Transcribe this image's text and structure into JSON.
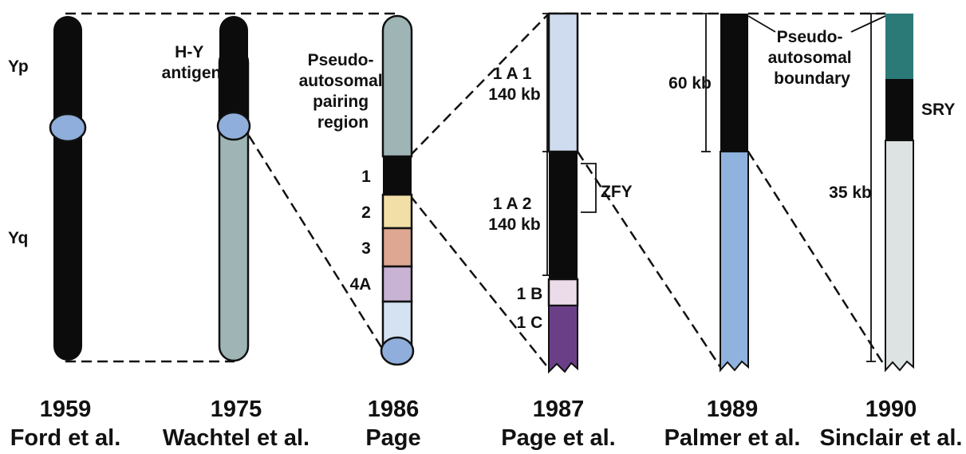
{
  "colors": {
    "black": "#0c0c0c",
    "grey_green": "#9fb5b5",
    "centromere_blue": "#90aedb",
    "band_yellow": "#f2dfa8",
    "band_salmon": "#dea792",
    "band_lilac": "#c8b3d4",
    "band_pale_blue": "#d4e2f2",
    "light_blue": "#cfdcef",
    "pale_pink": "#ecdcea",
    "purple": "#6b3f88",
    "medium_blue": "#90b2de",
    "teal": "#2b7a78",
    "pale_grey": "#dde3e3"
  },
  "panel_1959": {
    "arm_p": "Yp",
    "arm_q": "Yq",
    "year": "1959",
    "author": "Ford et al."
  },
  "panel_1975": {
    "label_line1": "H-Y",
    "label_line2": "antigen",
    "year": "1975",
    "author": "Wachtel et al."
  },
  "panel_1986": {
    "region_lines": [
      "Pseudo-",
      "autosomal",
      "pairing",
      "region"
    ],
    "bands": [
      "1",
      "2",
      "3",
      "4A"
    ],
    "year": "1986",
    "author": "Page"
  },
  "panel_1987": {
    "seg1_line1": "1 A 1",
    "seg1_line2": "140 kb",
    "seg2_line1": "1 A 2",
    "seg2_line2": "140 kb",
    "seg_1b": "1 B",
    "seg_1c": "1 C",
    "zfy": "ZFY",
    "year": "1987",
    "author": "Page et al."
  },
  "panel_1989": {
    "size": "60 kb",
    "boundary_lines": [
      "Pseudo-",
      "autosomal",
      "boundary"
    ],
    "year": "1989",
    "author": "Palmer et al."
  },
  "panel_1990": {
    "sry": "SRY",
    "size": "35 kb",
    "year": "1990",
    "author": "Sinclair et al."
  }
}
